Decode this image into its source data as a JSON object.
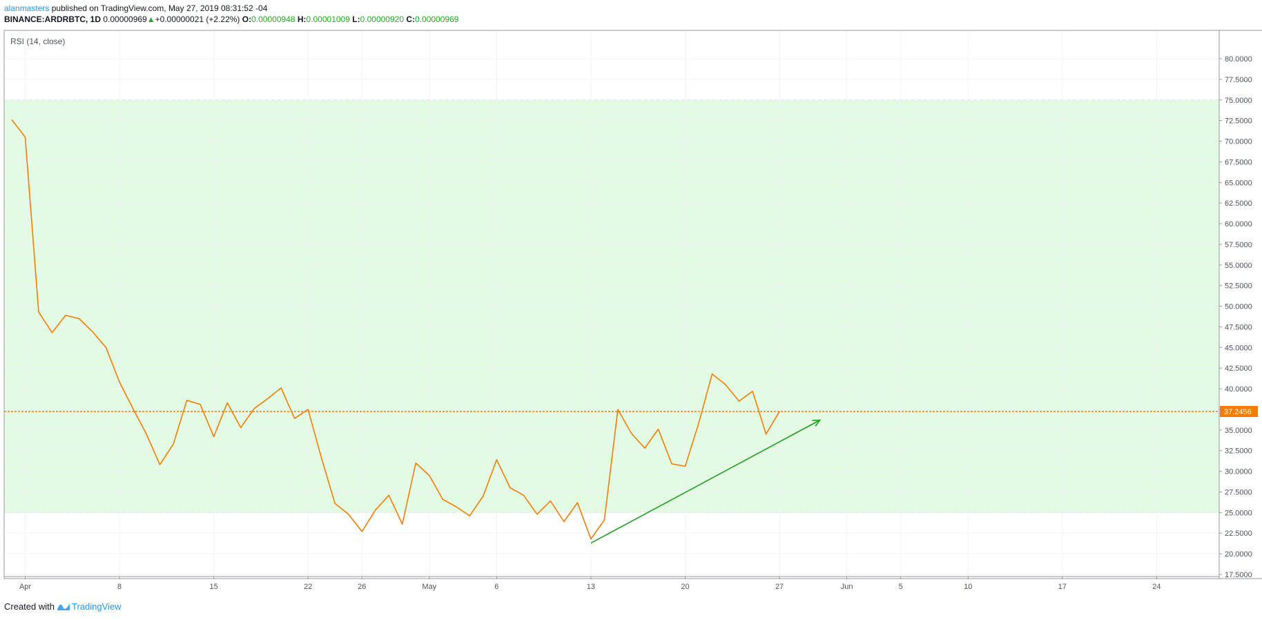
{
  "header": {
    "author": "alanmasters",
    "published_text": "published on TradingView.com, May 27, 2019 08:31:52 -04",
    "symbol": "BINANCE:ARDRBTC, 1D",
    "last_price": "0.00000969",
    "change_arrow": "▲",
    "change": "+0.00000021 (+2.22%)",
    "o_label": "O:",
    "o_value": "0.00000948",
    "h_label": "H:",
    "h_value": "0.00001009",
    "l_label": "L:",
    "l_value": "0.00000920",
    "c_label": "C:",
    "c_value": "0.00000969"
  },
  "indicator_label": "RSI (14, close)",
  "footer": {
    "created_with": "Created with",
    "brand": "TradingView"
  },
  "colors": {
    "rsi_line": "#f57c00",
    "band_fill": "#e3fbe3",
    "band_border": "#b2b5be",
    "arrow": "#1e9f1e",
    "price_label_bg": "#f57c00",
    "axis_text": "#4c525e"
  },
  "chart_data": {
    "type": "line",
    "series": [
      {
        "name": "RSI (14, close)",
        "x": [
          "2019-03-31",
          "2019-04-01",
          "2019-04-02",
          "2019-04-03",
          "2019-04-04",
          "2019-04-05",
          "2019-04-06",
          "2019-04-07",
          "2019-04-08",
          "2019-04-09",
          "2019-04-10",
          "2019-04-11",
          "2019-04-12",
          "2019-04-13",
          "2019-04-14",
          "2019-04-15",
          "2019-04-16",
          "2019-04-17",
          "2019-04-18",
          "2019-04-19",
          "2019-04-20",
          "2019-04-21",
          "2019-04-22",
          "2019-04-23",
          "2019-04-24",
          "2019-04-25",
          "2019-04-26",
          "2019-04-27",
          "2019-04-28",
          "2019-04-29",
          "2019-04-30",
          "2019-05-01",
          "2019-05-02",
          "2019-05-03",
          "2019-05-04",
          "2019-05-05",
          "2019-05-06",
          "2019-05-07",
          "2019-05-08",
          "2019-05-09",
          "2019-05-10",
          "2019-05-11",
          "2019-05-12",
          "2019-05-13",
          "2019-05-14",
          "2019-05-15",
          "2019-05-16",
          "2019-05-17",
          "2019-05-18",
          "2019-05-19",
          "2019-05-20",
          "2019-05-21",
          "2019-05-22",
          "2019-05-23",
          "2019-05-24",
          "2019-05-25",
          "2019-05-26",
          "2019-05-27"
        ],
        "values": [
          72.6,
          70.5,
          49.3,
          46.8,
          48.9,
          48.5,
          46.9,
          45.0,
          40.8,
          37.6,
          34.5,
          30.8,
          33.3,
          38.6,
          38.1,
          34.2,
          38.3,
          35.3,
          37.6,
          38.8,
          40.1,
          36.4,
          37.5,
          31.6,
          26.1,
          24.8,
          22.7,
          25.3,
          27.1,
          23.6,
          31.0,
          29.5,
          26.6,
          25.7,
          24.6,
          27.0,
          31.4,
          28.0,
          27.1,
          24.8,
          26.4,
          23.9,
          26.2,
          21.8,
          24.1,
          37.5,
          34.6,
          32.8,
          35.1,
          30.9,
          30.6,
          35.8,
          41.8,
          40.5,
          38.5,
          39.7,
          34.5,
          37.2456
        ]
      }
    ],
    "yaxis": {
      "min": 17.5,
      "max": 80.0,
      "ticks": [
        "80.0000",
        "77.5000",
        "75.0000",
        "72.5000",
        "70.0000",
        "67.5000",
        "65.0000",
        "62.5000",
        "60.0000",
        "57.5000",
        "55.0000",
        "52.5000",
        "50.0000",
        "47.5000",
        "45.0000",
        "42.5000",
        "40.0000",
        "37.5000",
        "35.0000",
        "32.5000",
        "30.0000",
        "27.5000",
        "25.0000",
        "22.5000",
        "20.0000",
        "17.5000"
      ]
    },
    "xaxis": {
      "ticks": [
        {
          "label": "Apr",
          "date": "2019-04-01"
        },
        {
          "label": "8",
          "date": "2019-04-08"
        },
        {
          "label": "15",
          "date": "2019-04-15"
        },
        {
          "label": "22",
          "date": "2019-04-22"
        },
        {
          "label": "26",
          "date": "2019-04-26"
        },
        {
          "label": "May",
          "date": "2019-05-01"
        },
        {
          "label": "6",
          "date": "2019-05-06"
        },
        {
          "label": "13",
          "date": "2019-05-13"
        },
        {
          "label": "20",
          "date": "2019-05-20"
        },
        {
          "label": "27",
          "date": "2019-05-27"
        },
        {
          "label": "Jun",
          "date": "2019-06-01"
        },
        {
          "label": "5",
          "date": "2019-06-05"
        },
        {
          "label": "10",
          "date": "2019-06-10"
        },
        {
          "label": "17",
          "date": "2019-06-17"
        },
        {
          "label": "24",
          "date": "2019-06-24"
        }
      ]
    },
    "bands": {
      "upper": 75.0,
      "lower": 25.0
    },
    "current_value": 37.2456,
    "current_value_label": "37.2456",
    "grid": true,
    "annotations": [
      {
        "type": "arrow",
        "from": {
          "x": "2019-05-13",
          "y": 21.3
        },
        "to": {
          "x": "2019-05-30",
          "y": 36.2
        }
      }
    ]
  }
}
